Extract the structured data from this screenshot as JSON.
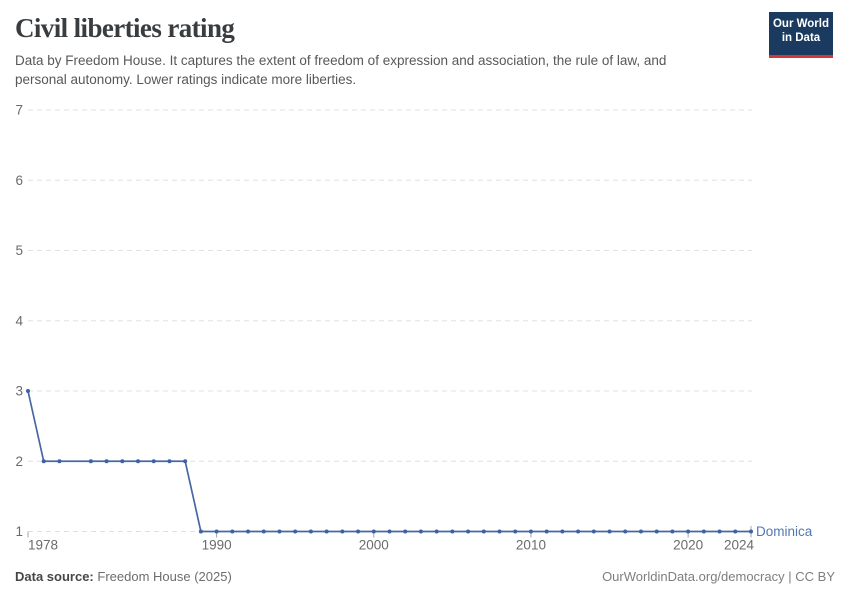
{
  "header": {
    "title": "Civil liberties rating",
    "subtitle_lines": [
      "Data by Freedom House. It captures the extent of freedom of expression and association, the rule of law, and",
      "personal autonomy. Lower ratings indicate more liberties."
    ],
    "logo": {
      "line1": "Our World",
      "line2": "in Data"
    }
  },
  "footer": {
    "source_label": "Data source:",
    "source_value": "Freedom House (2025)",
    "link": "OurWorldinData.org/democracy",
    "separator": "|",
    "license": "CC BY"
  },
  "colors": {
    "line": "#4667a4",
    "marker": "#3f61a2",
    "series_label": "#5377b5",
    "grid": "#e0e0e0",
    "axis_text": "#6b6b6b",
    "tick_mark": "#a6a6a6",
    "logo_bg": "#1b3a5f",
    "logo_red": "#cf3a37"
  },
  "chart_data": {
    "type": "line",
    "title": "Civil liberties rating",
    "xlabel": "",
    "ylabel": "",
    "xlim": [
      1978,
      2024
    ],
    "ylim": [
      1,
      7
    ],
    "x_ticks": [
      1978,
      1990,
      2000,
      2010,
      2020,
      2024
    ],
    "y_ticks": [
      1,
      2,
      3,
      4,
      5,
      6,
      7
    ],
    "grid": "horizontal-dashed",
    "legend_position": "end-of-line",
    "series": [
      {
        "name": "Dominica",
        "points": [
          [
            1978,
            3
          ],
          [
            1979,
            2
          ],
          [
            1980,
            2
          ],
          [
            1982,
            2
          ],
          [
            1983,
            2
          ],
          [
            1984,
            2
          ],
          [
            1985,
            2
          ],
          [
            1986,
            2
          ],
          [
            1987,
            2
          ],
          [
            1988,
            2
          ],
          [
            1989,
            1
          ],
          [
            1990,
            1
          ],
          [
            1991,
            1
          ],
          [
            1992,
            1
          ],
          [
            1993,
            1
          ],
          [
            1994,
            1
          ],
          [
            1995,
            1
          ],
          [
            1996,
            1
          ],
          [
            1997,
            1
          ],
          [
            1998,
            1
          ],
          [
            1999,
            1
          ],
          [
            2000,
            1
          ],
          [
            2001,
            1
          ],
          [
            2002,
            1
          ],
          [
            2003,
            1
          ],
          [
            2004,
            1
          ],
          [
            2005,
            1
          ],
          [
            2006,
            1
          ],
          [
            2007,
            1
          ],
          [
            2008,
            1
          ],
          [
            2009,
            1
          ],
          [
            2010,
            1
          ],
          [
            2011,
            1
          ],
          [
            2012,
            1
          ],
          [
            2013,
            1
          ],
          [
            2014,
            1
          ],
          [
            2015,
            1
          ],
          [
            2016,
            1
          ],
          [
            2017,
            1
          ],
          [
            2018,
            1
          ],
          [
            2019,
            1
          ],
          [
            2020,
            1
          ],
          [
            2021,
            1
          ],
          [
            2022,
            1
          ],
          [
            2023,
            1
          ],
          [
            2024,
            1
          ]
        ]
      }
    ]
  }
}
